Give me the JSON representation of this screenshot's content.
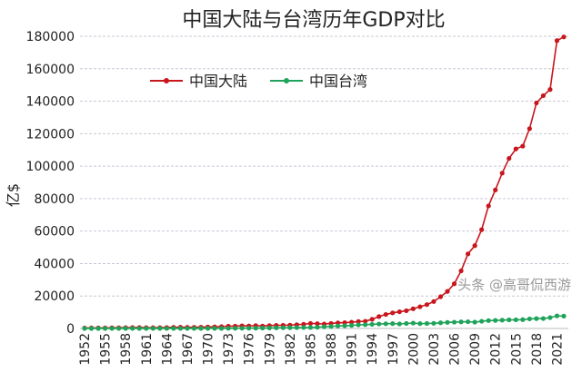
{
  "chart_data": {
    "type": "line",
    "title": "中国大陆与台湾历年GDP对比",
    "xlabel": "",
    "ylabel": "亿$",
    "ylim": [
      0,
      180000
    ],
    "yticks": [
      0,
      20000,
      40000,
      60000,
      80000,
      100000,
      120000,
      140000,
      160000,
      180000
    ],
    "xticks": [
      1952,
      1955,
      1958,
      1961,
      1964,
      1967,
      1970,
      1973,
      1976,
      1979,
      1982,
      1985,
      1988,
      1991,
      1994,
      1997,
      2000,
      2003,
      2006,
      2009,
      2012,
      2015,
      2018,
      2021
    ],
    "grid": true,
    "legend_position": "top-left",
    "x_start": 1952,
    "x_end": 2022,
    "series": [
      {
        "name": "中国大陆",
        "color": "#c8161d",
        "values": [
          300,
          330,
          350,
          370,
          420,
          450,
          520,
          560,
          600,
          500,
          470,
          510,
          600,
          710,
          770,
          730,
          710,
          800,
          930,
          1000,
          1140,
          1390,
          1440,
          1630,
          1540,
          1750,
          1500,
          1780,
          1910,
          1950,
          2050,
          2300,
          2590,
          3090,
          2960,
          2730,
          3120,
          3470,
          3610,
          3830,
          4270,
          4450,
          5640,
          7340,
          8640,
          9610,
          10290,
          10940,
          12110,
          13390,
          14700,
          16600,
          19550,
          22860,
          27520,
          35500,
          45940,
          51020,
          60870,
          75500,
          85320,
          95700,
          104760,
          110620,
          112330,
          123100,
          138950,
          143430,
          147230,
          177340,
          179600
        ]
      },
      {
        "name": "中国台湾",
        "color": "#1fa35a",
        "values": [
          12,
          13,
          13,
          14,
          15,
          16,
          18,
          18,
          19,
          20,
          21,
          24,
          27,
          30,
          33,
          38,
          43,
          50,
          57,
          67,
          80,
          110,
          150,
          160,
          190,
          220,
          270,
          340,
          420,
          490,
          490,
          530,
          600,
          630,
          780,
          1050,
          1260,
          1530,
          1660,
          1870,
          2230,
          2350,
          2560,
          2740,
          2900,
          3000,
          2800,
          3070,
          3310,
          2990,
          3080,
          3170,
          3480,
          3750,
          3880,
          4060,
          4160,
          3900,
          4440,
          4850,
          4950,
          5120,
          5300,
          5340,
          5430,
          5900,
          6090,
          6120,
          6690,
          7750,
          7610
        ]
      }
    ]
  },
  "watermark": "头条 @高哥侃西游"
}
